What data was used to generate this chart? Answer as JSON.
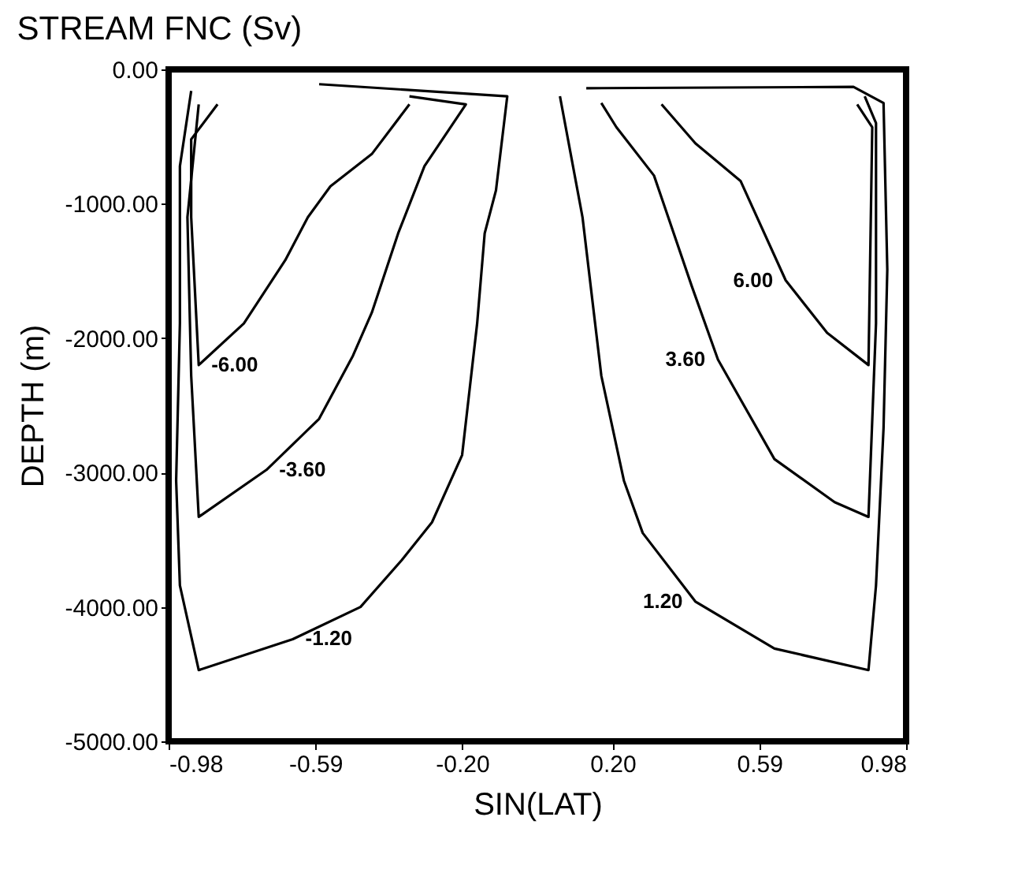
{
  "chart_data": {
    "type": "line",
    "title": "STREAM FNC (Sv)",
    "xlabel": "SIN(LAT)",
    "ylabel": "DEPTH (m)",
    "xlim": [
      -0.98,
      0.98
    ],
    "ylim": [
      -5000,
      0
    ],
    "xticks": [
      {
        "value": -0.98,
        "label": "-0.98"
      },
      {
        "value": -0.59,
        "label": "-0.59"
      },
      {
        "value": -0.2,
        "label": "-0.20"
      },
      {
        "value": 0.2,
        "label": "0.20"
      },
      {
        "value": 0.59,
        "label": "0.59"
      },
      {
        "value": 0.98,
        "label": "0.98"
      }
    ],
    "yticks": [
      {
        "value": 0,
        "label": "0.00"
      },
      {
        "value": -1000,
        "label": "-1000.00"
      },
      {
        "value": -2000,
        "label": "-2000.00"
      },
      {
        "value": -3000,
        "label": "-3000.00"
      },
      {
        "value": -4000,
        "label": "-4000.00"
      },
      {
        "value": -5000,
        "label": "-5000.00"
      }
    ],
    "grid": false,
    "legend": false,
    "line_style": "solid",
    "marker": "none",
    "series": [
      {
        "name": "-1.20",
        "color": "#000000",
        "x": [
          -0.58,
          -0.08,
          -0.11,
          -0.14,
          -0.16,
          -0.2,
          -0.28,
          -0.36,
          -0.47,
          -0.65,
          -0.9,
          -0.95,
          -0.96,
          -0.95,
          -0.95,
          -0.92
        ],
        "values": [
          -110,
          -200,
          -900,
          -1220,
          -1890,
          -2870,
          -3370,
          -3650,
          -4000,
          -4240,
          -4470,
          -3840,
          -3060,
          -1890,
          -720,
          -160
        ]
      },
      {
        "name": "-3.60",
        "color": "#000000",
        "x": [
          -0.34,
          -0.19,
          -0.3,
          -0.37,
          -0.44,
          -0.49,
          -0.58,
          -0.72,
          -0.9,
          -0.92,
          -0.93,
          -0.9
        ],
        "values": [
          -200,
          -260,
          -720,
          -1220,
          -1810,
          -2130,
          -2600,
          -2980,
          -3330,
          -2280,
          -1100,
          -260
        ]
      },
      {
        "name": "-6.00",
        "color": "#000000",
        "x": [
          -0.34,
          -0.44,
          -0.55,
          -0.61,
          -0.67,
          -0.78,
          -0.9,
          -0.92,
          -0.92,
          -0.85
        ],
        "values": [
          -260,
          -630,
          -870,
          -1100,
          -1420,
          -1890,
          -2200,
          -1100,
          -520,
          -260
        ]
      },
      {
        "name": "1.20",
        "color": "#000000",
        "x": [
          0.13,
          0.84,
          0.92,
          0.93,
          0.92,
          0.9,
          0.88,
          0.63,
          0.42,
          0.28,
          0.23,
          0.17,
          0.12,
          0.06
        ],
        "values": [
          -140,
          -130,
          -250,
          -1490,
          -2670,
          -3840,
          -4470,
          -4310,
          -3960,
          -3450,
          -3060,
          -2280,
          -1100,
          -200
        ]
      },
      {
        "name": "3.60",
        "color": "#000000",
        "x": [
          0.87,
          0.9,
          0.9,
          0.88,
          0.79,
          0.63,
          0.48,
          0.41,
          0.31,
          0.21,
          0.17
        ],
        "values": [
          -200,
          -400,
          -1890,
          -3330,
          -3220,
          -2900,
          -2160,
          -1610,
          -790,
          -430,
          -250
        ]
      },
      {
        "name": "6.00",
        "color": "#000000",
        "x": [
          0.85,
          0.89,
          0.88,
          0.77,
          0.66,
          0.54,
          0.42,
          0.33
        ],
        "values": [
          -260,
          -430,
          -2200,
          -1960,
          -1570,
          -830,
          -550,
          -260
        ]
      }
    ]
  }
}
